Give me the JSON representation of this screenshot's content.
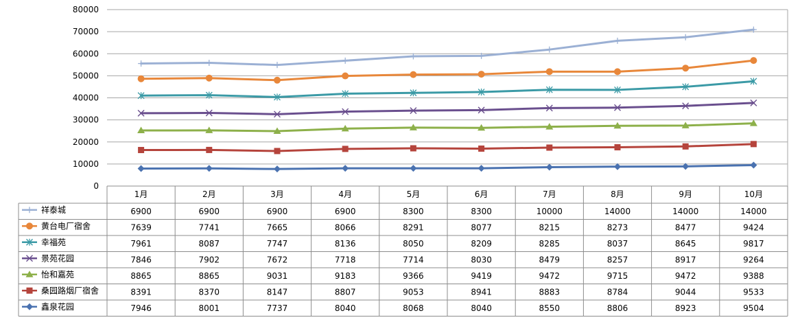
{
  "chart_data": {
    "type": "line",
    "stacked": true,
    "categories": [
      "1月",
      "2月",
      "3月",
      "4月",
      "5月",
      "6月",
      "7月",
      "8月",
      "9月",
      "10月"
    ],
    "ylim": [
      0,
      80000
    ],
    "yticks": [
      "0",
      "10000",
      "20000",
      "30000",
      "40000",
      "50000",
      "60000",
      "70000",
      "80000"
    ],
    "grid": true,
    "legend": "data-table-left",
    "series": [
      {
        "name": "祥泰城",
        "marker": "plus",
        "color": "#9bb0d4",
        "values": [
          6900,
          6900,
          6900,
          6900,
          8300,
          8300,
          10000,
          14000,
          14000,
          14000
        ]
      },
      {
        "name": "黄台电厂宿舍",
        "marker": "circle",
        "color": "#e8873a",
        "values": [
          7639,
          7741,
          7665,
          8066,
          8291,
          8077,
          8215,
          8273,
          8477,
          9424
        ]
      },
      {
        "name": "幸福苑",
        "marker": "star",
        "color": "#3b9aa6",
        "values": [
          7961,
          8087,
          7747,
          8136,
          8050,
          8209,
          8285,
          8037,
          8645,
          9817
        ]
      },
      {
        "name": "景苑花园",
        "marker": "x",
        "color": "#6a4f8e",
        "values": [
          7846,
          7902,
          7672,
          7718,
          7714,
          8030,
          8479,
          8257,
          8917,
          9264
        ]
      },
      {
        "name": "怡和嘉苑",
        "marker": "triangle",
        "color": "#8db04a",
        "values": [
          8865,
          8865,
          9031,
          9183,
          9366,
          9419,
          9472,
          9715,
          9472,
          9388
        ]
      },
      {
        "name": "桑园路烟厂宿舍",
        "marker": "square",
        "color": "#b5443c",
        "values": [
          8391,
          8370,
          8147,
          8807,
          9053,
          8941,
          8883,
          8784,
          9044,
          9533
        ]
      },
      {
        "name": "鑫泉花园",
        "marker": "diamond",
        "color": "#4a72b0",
        "values": [
          7946,
          8001,
          7737,
          8040,
          8068,
          8040,
          8550,
          8806,
          8923,
          9504
        ]
      }
    ]
  }
}
